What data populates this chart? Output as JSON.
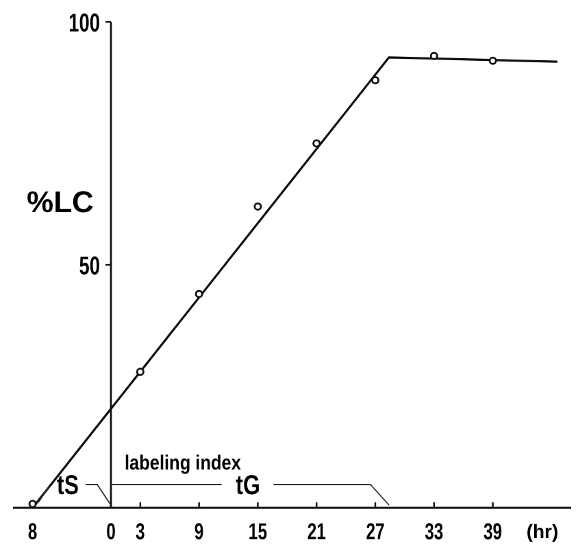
{
  "chart_data": {
    "type": "scatter",
    "ylabel": "%LC",
    "xlabel": "(hr)",
    "xlim": [
      -10,
      47
    ],
    "ylim": [
      0,
      100
    ],
    "xticks": [
      {
        "value": -8,
        "label": "8"
      },
      0,
      3,
      9,
      15,
      21,
      27,
      33,
      39
    ],
    "yticks": [
      50,
      100
    ],
    "grid": false,
    "marker": "circle",
    "series": [
      {
        "color": "#111111",
        "x": [
          -8,
          3,
          9,
          15,
          21,
          27,
          33,
          39
        ],
        "values": [
          0.8,
          28,
          44,
          62,
          75,
          88,
          93,
          92
        ]
      },
      {
        "type": "line",
        "color": "#111111",
        "marker": "none",
        "x": [
          -8,
          28.4,
          45.6
        ],
        "values": [
          0,
          92.7,
          91.8
        ]
      }
    ],
    "annotations": [
      "labeling index",
      "tS",
      "tG"
    ]
  }
}
